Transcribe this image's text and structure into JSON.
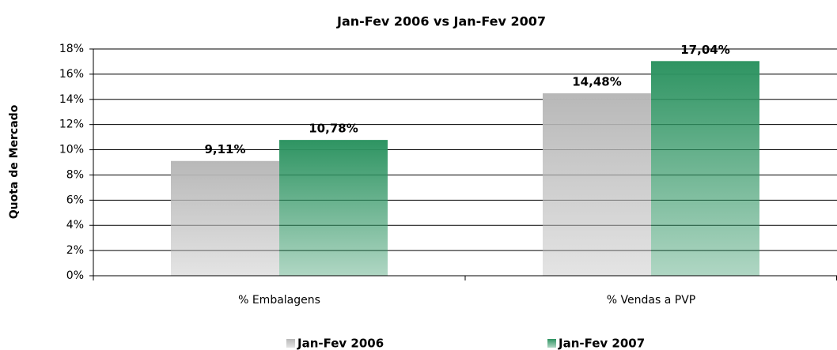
{
  "chart_data": {
    "type": "bar",
    "title": "Jan-Fev 2006  vs  Jan-Fev 2007",
    "ylabel": "Quota de Mercado",
    "categories": [
      "% Embalagens",
      "% Vendas a PVP"
    ],
    "series": [
      {
        "name": "Jan-Fev 2006",
        "color": "#b8b8b8",
        "values": [
          9.11,
          14.48
        ],
        "value_labels": [
          "9,11%",
          "14,48%"
        ]
      },
      {
        "name": "Jan-Fev 2007",
        "color": "#2e9462",
        "values": [
          10.78,
          17.04
        ],
        "value_labels": [
          "10,78%",
          "17,04%"
        ]
      }
    ],
    "ylim": [
      0,
      18
    ],
    "yticks": [
      {
        "value": 0,
        "label": "0%"
      },
      {
        "value": 2,
        "label": "2%"
      },
      {
        "value": 4,
        "label": "4%"
      },
      {
        "value": 6,
        "label": "6%"
      },
      {
        "value": 8,
        "label": "8%"
      },
      {
        "value": 10,
        "label": "10%"
      },
      {
        "value": 12,
        "label": "12%"
      },
      {
        "value": 14,
        "label": "14%"
      },
      {
        "value": 16,
        "label": "16%"
      },
      {
        "value": 18,
        "label": "18%"
      }
    ],
    "grid": true
  }
}
